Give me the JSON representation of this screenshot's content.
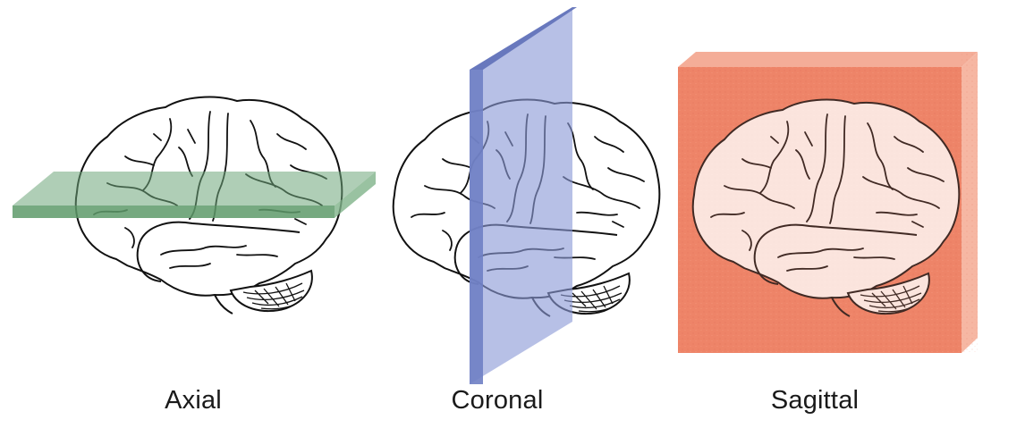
{
  "panels": [
    {
      "label": "Axial",
      "plane_color": "#6ea57a"
    },
    {
      "label": "Coronal",
      "plane_color": "#7f8fce"
    },
    {
      "label": "Sagittal",
      "plane_color": "#ee8468"
    }
  ],
  "colors": {
    "brain_outline": "#111111",
    "background": "#ffffff"
  }
}
